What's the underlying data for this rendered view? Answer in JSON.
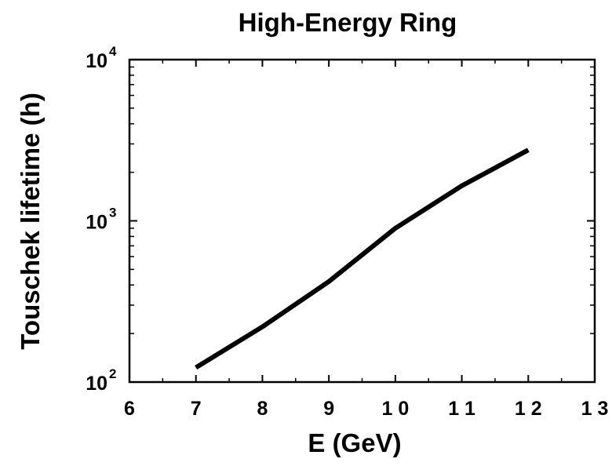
{
  "chart_data": {
    "type": "line",
    "title": "High-Energy Ring",
    "xlabel": "E (GeV)",
    "ylabel": "Touschek lifetime (h)",
    "xlim": [
      6,
      13
    ],
    "ylim": [
      100,
      10000
    ],
    "yscale": "log",
    "grid": false,
    "x_ticks": [
      {
        "value": 6,
        "label": "6"
      },
      {
        "value": 7,
        "label": "7"
      },
      {
        "value": 8,
        "label": "8"
      },
      {
        "value": 9,
        "label": "9"
      },
      {
        "value": 10,
        "label": "1 0"
      },
      {
        "value": 11,
        "label": "1 1"
      },
      {
        "value": 12,
        "label": "1 2"
      },
      {
        "value": 13,
        "label": "1 3"
      }
    ],
    "y_ticks": [
      {
        "value": 100,
        "base": "10",
        "exponent": "2"
      },
      {
        "value": 1000,
        "base": "10",
        "exponent": "3"
      },
      {
        "value": 10000,
        "base": "10",
        "exponent": "4"
      }
    ],
    "series": [
      {
        "color": "#000000",
        "x": [
          7,
          8,
          9,
          10,
          11,
          12
        ],
        "y": [
          123,
          220,
          420,
          900,
          1650,
          2750
        ]
      }
    ]
  }
}
